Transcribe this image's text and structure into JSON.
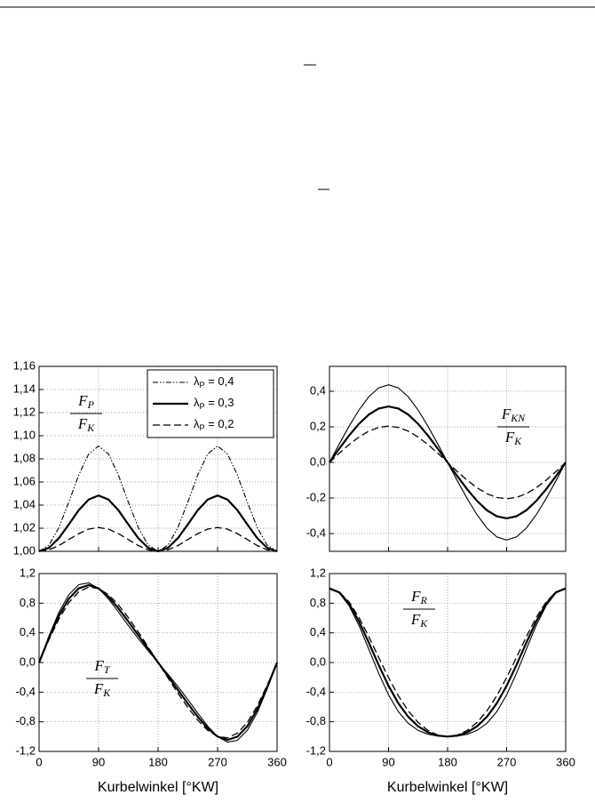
{
  "chart_data": [
    {
      "type": "line",
      "legend": "upper right",
      "annotation": {
        "numerator": "FP",
        "denominator": "FK"
      },
      "x": [
        0,
        15,
        30,
        45,
        60,
        75,
        90,
        105,
        120,
        135,
        150,
        165,
        180,
        195,
        210,
        225,
        240,
        255,
        270,
        285,
        300,
        315,
        330,
        345,
        360
      ],
      "xlim": [
        0,
        360
      ],
      "xticks": [
        0,
        90,
        180,
        270,
        360
      ],
      "ylim": [
        1.0,
        1.16
      ],
      "yticks": [
        {
          "value": 1.0,
          "label": "1,00"
        },
        {
          "value": 1.02,
          "label": "1,02"
        },
        {
          "value": 1.04,
          "label": "1,04"
        },
        {
          "value": 1.06,
          "label": "1,06"
        },
        {
          "value": 1.08,
          "label": "1,08"
        },
        {
          "value": 1.1,
          "label": "1,10"
        },
        {
          "value": 1.12,
          "label": "1,12"
        },
        {
          "value": 1.14,
          "label": "1,14"
        },
        {
          "value": 1.16,
          "label": "1,16"
        }
      ],
      "grid": true,
      "series": [
        {
          "name": "λP = 0,4",
          "color": "#000000",
          "style": "dashdot",
          "values": [
            1,
            1.0054,
            1.0206,
            1.0426,
            1.066,
            1.0842,
            1.0911,
            1.0842,
            1.066,
            1.0426,
            1.0206,
            1.0054,
            1,
            1.0054,
            1.0206,
            1.0426,
            1.066,
            1.0842,
            1.0911,
            1.0842,
            1.066,
            1.0426,
            1.0206,
            1.0054,
            1
          ]
        },
        {
          "name": "λP = 0,3",
          "color": "#000000",
          "style": "solid",
          "values": [
            1,
            1.003,
            1.0114,
            1.0233,
            1.0356,
            1.0448,
            1.0483,
            1.0448,
            1.0356,
            1.0233,
            1.0114,
            1.003,
            1,
            1.003,
            1.0114,
            1.0233,
            1.0356,
            1.0448,
            1.0483,
            1.0448,
            1.0356,
            1.0233,
            1.0114,
            1.003,
            1
          ]
        },
        {
          "name": "λP = 0,2",
          "color": "#000000",
          "style": "dashed",
          "values": [
            1,
            1.0013,
            1.005,
            1.0102,
            1.0153,
            1.0192,
            1.0206,
            1.0192,
            1.0153,
            1.0102,
            1.005,
            1.0013,
            1,
            1.0013,
            1.005,
            1.0102,
            1.0153,
            1.0192,
            1.0206,
            1.0192,
            1.0153,
            1.0102,
            1.005,
            1.0013,
            1
          ]
        }
      ]
    },
    {
      "type": "line",
      "annotation": {
        "numerator": "FKN",
        "denominator": "FK"
      },
      "x": [
        0,
        15,
        30,
        45,
        60,
        75,
        90,
        105,
        120,
        135,
        150,
        165,
        180,
        195,
        210,
        225,
        240,
        255,
        270,
        285,
        300,
        315,
        330,
        345,
        360
      ],
      "xlim": [
        0,
        360
      ],
      "xticks": [
        0,
        90,
        180,
        270,
        360
      ],
      "ylim": [
        -0.5,
        0.54
      ],
      "yticks": [
        {
          "value": -0.4,
          "label": "-0,4"
        },
        {
          "value": -0.2,
          "label": "-0,2"
        },
        {
          "value": 0,
          "label": "0,0"
        },
        {
          "value": 0.2,
          "label": "0,2"
        },
        {
          "value": 0.4,
          "label": "0,4"
        }
      ],
      "grid": true,
      "series": [
        {
          "color": "#000000",
          "style": "thin",
          "values": [
            0,
            0.1041,
            0.2041,
            0.2949,
            0.3693,
            0.4189,
            0.4364,
            0.4189,
            0.3693,
            0.2949,
            0.2041,
            0.1041,
            0,
            -0.1041,
            -0.2041,
            -0.2949,
            -0.3693,
            -0.4189,
            -0.4364,
            -0.4189,
            -0.3693,
            -0.2949,
            -0.2041,
            -0.1041,
            0
          ]
        },
        {
          "color": "#000000",
          "style": "solid",
          "values": [
            0,
            0.0779,
            0.1517,
            0.2171,
            0.2691,
            0.3028,
            0.3145,
            0.3028,
            0.2691,
            0.2171,
            0.1517,
            0.0779,
            0,
            -0.0779,
            -0.1517,
            -0.2171,
            -0.2691,
            -0.3028,
            -0.3145,
            -0.3028,
            -0.2691,
            -0.2171,
            -0.1517,
            -0.0779,
            0
          ]
        },
        {
          "color": "#000000",
          "style": "dashed",
          "values": [
            0,
            0.0518,
            0.1005,
            0.1429,
            0.1759,
            0.1969,
            0.2041,
            0.1969,
            0.1759,
            0.1429,
            0.1005,
            0.0518,
            0,
            -0.0518,
            -0.1005,
            -0.1429,
            -0.1759,
            -0.1969,
            -0.2041,
            -0.1969,
            -0.1759,
            -0.1429,
            -0.1005,
            -0.0518,
            0
          ]
        }
      ]
    },
    {
      "type": "line",
      "xlabel": "Kurbelwinkel [°KW]",
      "annotation": {
        "numerator": "FT",
        "denominator": "FK"
      },
      "x": [
        0,
        15,
        30,
        45,
        60,
        75,
        90,
        105,
        120,
        135,
        150,
        165,
        180,
        195,
        210,
        225,
        240,
        255,
        270,
        285,
        300,
        315,
        330,
        345,
        360
      ],
      "xlim": [
        0,
        360
      ],
      "xticks": [
        0,
        90,
        180,
        270,
        360
      ],
      "ylim": [
        -1.2,
        1.2
      ],
      "yticks": [
        {
          "value": -1.2,
          "label": "-1,2"
        },
        {
          "value": -0.8,
          "label": "-0,8"
        },
        {
          "value": -0.4,
          "label": "-0,4"
        },
        {
          "value": 0,
          "label": "0,0"
        },
        {
          "value": 0.4,
          "label": "0,4"
        },
        {
          "value": 0.8,
          "label": "0,8"
        },
        {
          "value": 1.2,
          "label": "1,2"
        }
      ],
      "grid": true,
      "series": [
        {
          "color": "#000000",
          "style": "thin",
          "values": [
            0,
            0.3593,
            0.6768,
            0.9156,
            1.0506,
            1.0743,
            1,
            0.8575,
            0.6814,
            0.4986,
            0.3232,
            0.1583,
            0,
            -0.1583,
            -0.3232,
            -0.4986,
            -0.6814,
            -0.8575,
            -1,
            -1.0743,
            -1.0506,
            -0.9156,
            -0.6768,
            -0.3593,
            0
          ]
        },
        {
          "color": "#000000",
          "style": "solid",
          "values": [
            0,
            0.334,
            0.6314,
            0.8606,
            1.0005,
            1.0443,
            1,
            0.8875,
            0.7315,
            0.5536,
            0.3686,
            0.1836,
            0,
            -0.1836,
            -0.3686,
            -0.5536,
            -0.7315,
            -0.8875,
            -1,
            -1.0443,
            -1.0005,
            -0.8606,
            -0.6314,
            -0.334,
            0
          ]
        },
        {
          "color": "#000000",
          "style": "dashed",
          "values": [
            0,
            0.3089,
            0.587,
            0.8081,
            0.9539,
            1.0169,
            1,
            0.915,
            0.7781,
            0.6061,
            0.413,
            0.2087,
            0,
            -0.2087,
            -0.413,
            -0.6061,
            -0.7781,
            -0.915,
            -1,
            -1.0169,
            -0.9539,
            -0.8081,
            -0.587,
            -0.3089,
            0
          ]
        }
      ]
    },
    {
      "type": "line",
      "xlabel": "Kurbelwinkel [°KW]",
      "annotation": {
        "numerator": "FR",
        "denominator": "FK"
      },
      "x": [
        0,
        15,
        30,
        45,
        60,
        75,
        90,
        105,
        120,
        135,
        150,
        165,
        180,
        195,
        210,
        225,
        240,
        255,
        270,
        285,
        300,
        315,
        330,
        345,
        360
      ],
      "xlim": [
        0,
        360
      ],
      "xticks": [
        0,
        90,
        180,
        270,
        360
      ],
      "ylim": [
        -1.2,
        1.2
      ],
      "yticks": [
        {
          "value": -1.2,
          "label": "-1,2"
        },
        {
          "value": -0.8,
          "label": "-0,8"
        },
        {
          "value": -0.4,
          "label": "-0,4"
        },
        {
          "value": 0,
          "label": "0,0"
        },
        {
          "value": 0.4,
          "label": "0,4"
        },
        {
          "value": 0.8,
          "label": "0,8"
        },
        {
          "value": 1.2,
          "label": "1,2"
        }
      ],
      "grid": true,
      "series": [
        {
          "color": "#000000",
          "style": "thin",
          "values": [
            1,
            0.939,
            0.7639,
            0.4986,
            0.1802,
            -0.1458,
            -0.4364,
            -0.6634,
            -0.8198,
            -0.9156,
            -0.9681,
            -0.9928,
            -1,
            -0.9928,
            -0.9681,
            -0.9156,
            -0.8198,
            -0.6634,
            -0.4364,
            -0.1458,
            0.1802,
            0.4986,
            0.7639,
            0.939,
            1
          ]
        },
        {
          "color": "#000000",
          "style": "solid",
          "values": [
            1,
            0.9457,
            0.7901,
            0.5536,
            0.267,
            -0.0337,
            -0.3145,
            -0.5513,
            -0.733,
            -0.8606,
            -0.9419,
            -0.9861,
            -1,
            -0.9861,
            -0.9419,
            -0.8606,
            -0.733,
            -0.5513,
            -0.3145,
            -0.0337,
            0.267,
            0.5536,
            0.7901,
            0.9457,
            1
          ]
        },
        {
          "color": "#000000",
          "style": "dashed",
          "values": [
            1,
            0.9525,
            0.8158,
            0.6061,
            0.3477,
            0.0686,
            -0.2041,
            -0.449,
            -0.6523,
            -0.8081,
            -0.9163,
            -0.9793,
            -1,
            -0.9793,
            -0.9163,
            -0.8081,
            -0.6523,
            -0.449,
            -0.2041,
            0.0686,
            0.3477,
            0.6061,
            0.8158,
            0.9525,
            1
          ]
        }
      ]
    }
  ]
}
